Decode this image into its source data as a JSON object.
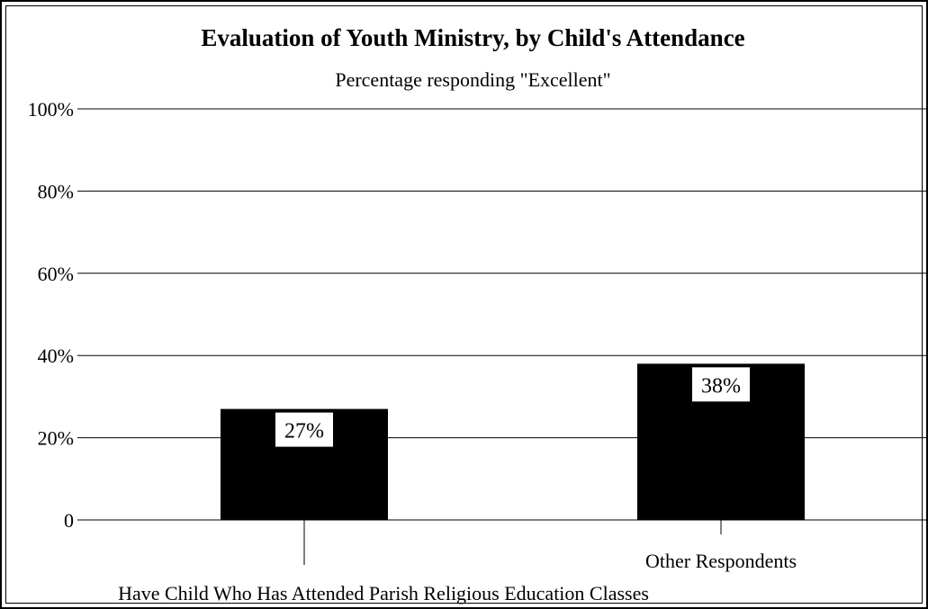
{
  "chart_data": {
    "type": "bar",
    "title": "Evaluation of Youth Ministry, by Child's Attendance",
    "subtitle": "Percentage responding \"Excellent\"",
    "categories": [
      "Have Child Who Has Attended Parish Religious Education Classes",
      "Other Respondents"
    ],
    "values": [
      27,
      38
    ],
    "data_labels": [
      "27%",
      "38%"
    ],
    "ylim": [
      0,
      100
    ],
    "y_ticks": [
      {
        "value": 0,
        "label": "0"
      },
      {
        "value": 20,
        "label": "20%"
      },
      {
        "value": 40,
        "label": "40%"
      },
      {
        "value": 60,
        "label": "60%"
      },
      {
        "value": 80,
        "label": "80%"
      },
      {
        "value": 100,
        "label": "100%"
      }
    ],
    "grid": true,
    "legend": "none",
    "bar_color": "#000000"
  }
}
